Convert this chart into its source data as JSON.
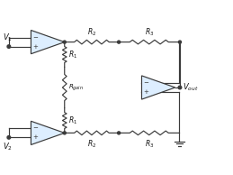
{
  "bg_color": "#ffffff",
  "line_color": "#3a3a3a",
  "op_amp_fill": "#ddeeff",
  "label_color": "#111111",
  "fig_width": 2.59,
  "fig_height": 1.94,
  "dpi": 100,
  "xlim": [
    0,
    10
  ],
  "ylim": [
    0,
    7.7
  ]
}
